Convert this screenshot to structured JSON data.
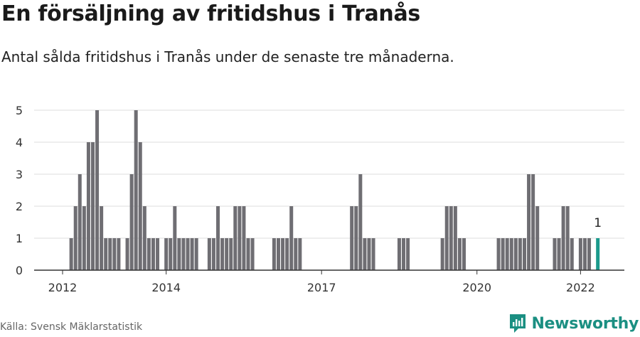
{
  "header": {
    "title": "En försäljning av fritidshus i Tranås",
    "subtitle": "Antal sålda fritidshus i Tranås under de senaste tre månaderna."
  },
  "footer": {
    "source": "Källa: Svensk Mäklarstatistik",
    "brand": "Newsworthy",
    "brand_icon": "newsworthy-logo-icon"
  },
  "colors": {
    "bar": "#6f6e73",
    "highlight": "#1b9a8c",
    "grid": "#dddddd",
    "axis": "#333333",
    "brand": "#1b8f82"
  },
  "chart_data": {
    "type": "bar",
    "title": "",
    "xlabel": "",
    "ylabel": "",
    "ylim": [
      0,
      5
    ],
    "yticks": [
      "0",
      "1",
      "2",
      "3",
      "4",
      "5"
    ],
    "xticks": [
      {
        "label": "2012",
        "date": "2012-01"
      },
      {
        "label": "2014",
        "date": "2014-01"
      },
      {
        "label": "2017",
        "date": "2017-01"
      },
      {
        "label": "2020",
        "date": "2020-01"
      },
      {
        "label": "2022",
        "date": "2022-01"
      }
    ],
    "grid": true,
    "annotation": {
      "text": "1",
      "date": "2022-05"
    },
    "highlight_date": "2022-05",
    "x": [
      "2012-01",
      "2012-02",
      "2012-03",
      "2012-04",
      "2012-05",
      "2012-06",
      "2012-07",
      "2012-08",
      "2012-09",
      "2012-10",
      "2012-11",
      "2012-12",
      "2013-01",
      "2013-02",
      "2013-03",
      "2013-04",
      "2013-05",
      "2013-06",
      "2013-07",
      "2013-08",
      "2013-09",
      "2013-10",
      "2013-11",
      "2013-12",
      "2014-01",
      "2014-02",
      "2014-03",
      "2014-04",
      "2014-05",
      "2014-06",
      "2014-07",
      "2014-08",
      "2014-09",
      "2014-10",
      "2014-11",
      "2014-12",
      "2015-01",
      "2015-02",
      "2015-03",
      "2015-04",
      "2015-05",
      "2015-06",
      "2015-07",
      "2015-08",
      "2015-09",
      "2015-10",
      "2015-11",
      "2015-12",
      "2016-01",
      "2016-02",
      "2016-03",
      "2016-04",
      "2016-05",
      "2016-06",
      "2016-07",
      "2016-08",
      "2016-09",
      "2016-10",
      "2016-11",
      "2016-12",
      "2017-01",
      "2017-02",
      "2017-03",
      "2017-04",
      "2017-05",
      "2017-06",
      "2017-07",
      "2017-08",
      "2017-09",
      "2017-10",
      "2017-11",
      "2017-12",
      "2018-01",
      "2018-02",
      "2018-03",
      "2018-04",
      "2018-05",
      "2018-06",
      "2018-07",
      "2018-08",
      "2018-09",
      "2018-10",
      "2018-11",
      "2018-12",
      "2019-01",
      "2019-02",
      "2019-03",
      "2019-04",
      "2019-05",
      "2019-06",
      "2019-07",
      "2019-08",
      "2019-09",
      "2019-10",
      "2019-11",
      "2019-12",
      "2020-01",
      "2020-02",
      "2020-03",
      "2020-04",
      "2020-05",
      "2020-06",
      "2020-07",
      "2020-08",
      "2020-09",
      "2020-10",
      "2020-11",
      "2020-12",
      "2021-01",
      "2021-02",
      "2021-03",
      "2021-04",
      "2021-05",
      "2021-06",
      "2021-07",
      "2021-08",
      "2021-09",
      "2021-10",
      "2021-11",
      "2021-12",
      "2022-01",
      "2022-02",
      "2022-03",
      "2022-04",
      "2022-05"
    ],
    "values": [
      0,
      0,
      1,
      2,
      3,
      2,
      4,
      4,
      5,
      2,
      1,
      1,
      1,
      1,
      0,
      1,
      3,
      5,
      4,
      2,
      1,
      1,
      1,
      0,
      1,
      1,
      2,
      1,
      1,
      1,
      1,
      1,
      0,
      0,
      1,
      1,
      2,
      1,
      1,
      1,
      2,
      2,
      2,
      1,
      1,
      0,
      0,
      0,
      0,
      1,
      1,
      1,
      1,
      2,
      1,
      1,
      0,
      0,
      0,
      0,
      0,
      0,
      0,
      0,
      0,
      0,
      0,
      2,
      2,
      3,
      1,
      1,
      1,
      0,
      0,
      0,
      0,
      0,
      1,
      1,
      1,
      0,
      0,
      0,
      0,
      0,
      0,
      0,
      1,
      2,
      2,
      2,
      1,
      1,
      0,
      0,
      0,
      0,
      0,
      0,
      0,
      1,
      1,
      1,
      1,
      1,
      1,
      1,
      3,
      3,
      2,
      0,
      0,
      0,
      1,
      1,
      2,
      2,
      1,
      0,
      1,
      1,
      1,
      0,
      1
    ]
  }
}
